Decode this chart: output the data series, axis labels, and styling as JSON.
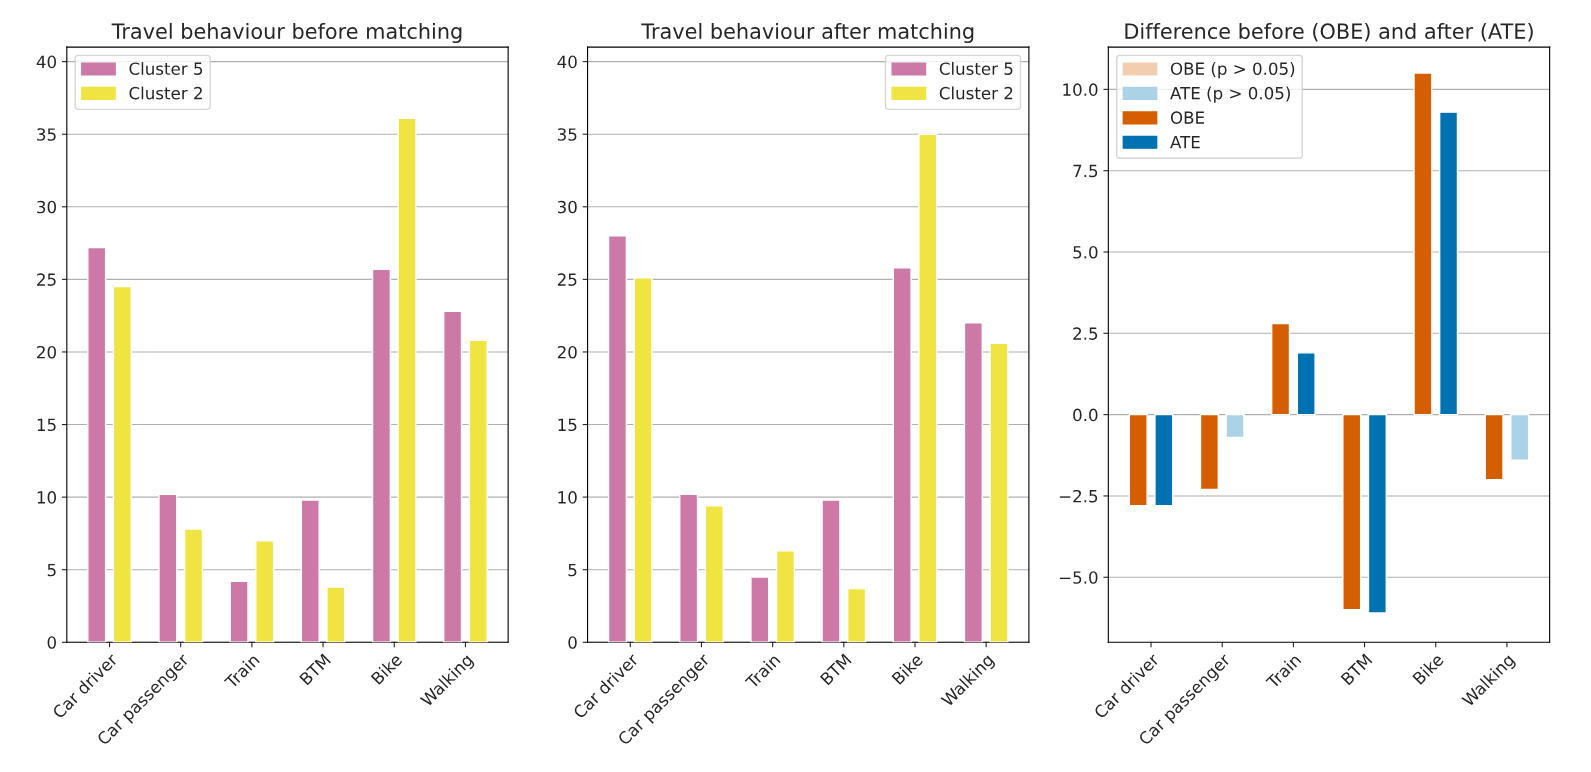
{
  "chart_data": [
    {
      "type": "bar",
      "title": "Travel behaviour before matching",
      "categories": [
        "Car driver",
        "Car passenger",
        "Train",
        "BTM",
        "Bike",
        "Walking"
      ],
      "series": [
        {
          "name": "Cluster 5",
          "color": "#cc79a7",
          "values": [
            27.2,
            10.2,
            4.2,
            9.8,
            25.7,
            22.8
          ]
        },
        {
          "name": "Cluster 2",
          "color": "#f0e442",
          "values": [
            24.5,
            7.8,
            7.0,
            3.8,
            36.1,
            20.8
          ]
        }
      ],
      "ylim": [
        0,
        41
      ],
      "yticks": [
        0,
        5,
        10,
        15,
        20,
        25,
        30,
        35,
        40
      ],
      "grid": "y",
      "legend": "top left"
    },
    {
      "type": "bar",
      "title": "Travel behaviour after matching",
      "categories": [
        "Car driver",
        "Car passenger",
        "Train",
        "BTM",
        "Bike",
        "Walking"
      ],
      "series": [
        {
          "name": "Cluster 5",
          "color": "#cc79a7",
          "values": [
            28.0,
            10.2,
            4.5,
            9.8,
            25.8,
            22.0
          ]
        },
        {
          "name": "Cluster 2",
          "color": "#f0e442",
          "values": [
            25.1,
            9.4,
            6.3,
            3.7,
            35.0,
            20.6
          ]
        }
      ],
      "ylim": [
        0,
        41
      ],
      "yticks": [
        0,
        5,
        10,
        15,
        20,
        25,
        30,
        35,
        40
      ],
      "grid": "y",
      "legend": "top right"
    },
    {
      "type": "bar",
      "title": "Difference before (OBE) and after (ATE)",
      "categories": [
        "Car driver",
        "Car passenger",
        "Train",
        "BTM",
        "Bike",
        "Walking"
      ],
      "series": [
        {
          "name": "OBE (p > 0.05)",
          "color": "#f3cdb0",
          "values": [
            null,
            null,
            null,
            null,
            null,
            null
          ]
        },
        {
          "name": "ATE (p > 0.05)",
          "color": "#abd3e8",
          "values": [
            null,
            -0.7,
            null,
            null,
            null,
            -1.4
          ]
        },
        {
          "name": "OBE",
          "color": "#d55e00",
          "values": [
            -2.8,
            -2.3,
            2.8,
            -6.0,
            10.5,
            -2.0
          ]
        },
        {
          "name": "ATE",
          "color": "#0072b2",
          "values": [
            -2.8,
            null,
            1.9,
            -6.1,
            9.3,
            null
          ]
        }
      ],
      "ylim": [
        -7,
        11.3
      ],
      "yticks": [
        {
          "value": -5,
          "label": "−5.0"
        },
        {
          "value": -2.5,
          "label": "−2.5"
        },
        {
          "value": 0,
          "label": "0.0"
        },
        {
          "value": 2.5,
          "label": "2.5"
        },
        {
          "value": 5,
          "label": "5.0"
        },
        {
          "value": 7.5,
          "label": "7.5"
        },
        {
          "value": 10,
          "label": "10.0"
        }
      ],
      "grid": "y",
      "legend": "top left"
    }
  ]
}
